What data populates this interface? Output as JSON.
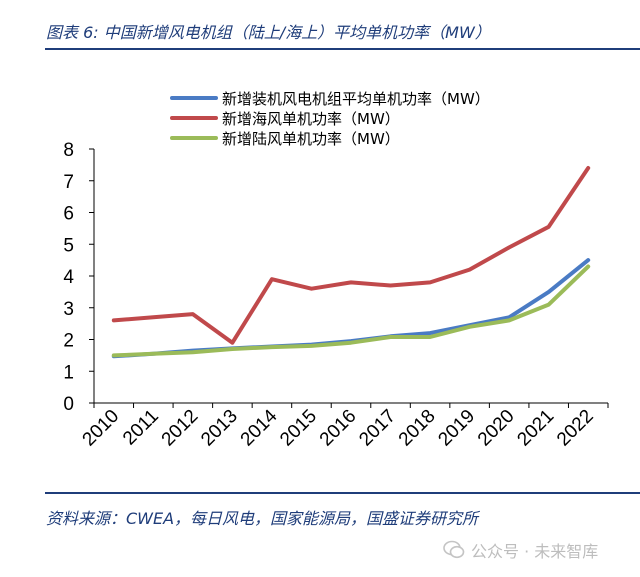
{
  "figure": {
    "title": "图表 6:  中国新增风电机组（陆上/海上）平均单机功率（MW）",
    "source": "资料来源：CWEA，每日风电，国家能源局，国盛证券研究所",
    "watermark": "公众号 · 未来智库"
  },
  "chart_data": {
    "type": "line",
    "title": "中国新增风电机组（陆上/海上）平均单机功率（MW）",
    "xlabel": "",
    "ylabel": "",
    "categories": [
      "2010",
      "2011",
      "2012",
      "2013",
      "2014",
      "2015",
      "2016",
      "2017",
      "2018",
      "2019",
      "2020",
      "2021",
      "2022"
    ],
    "ylim": [
      0,
      8
    ],
    "yticks": [
      "0",
      "1",
      "2",
      "3",
      "4",
      "5",
      "6",
      "7",
      "8"
    ],
    "legend_position": "top-center",
    "grid": false,
    "series": [
      {
        "name": "新增装机风电机组平均单机功率（MW）",
        "color": "#4a7bc4",
        "values": [
          1.47,
          1.55,
          1.65,
          1.72,
          1.78,
          1.84,
          1.95,
          2.1,
          2.2,
          2.45,
          2.7,
          3.5,
          4.5
        ]
      },
      {
        "name": "新增海风单机功率（MW）",
        "color": "#c0494b",
        "values": [
          2.6,
          2.7,
          2.8,
          1.9,
          3.9,
          3.6,
          3.8,
          3.7,
          3.8,
          4.2,
          4.9,
          5.55,
          7.4
        ]
      },
      {
        "name": "新增陆风单机功率（MW）",
        "color": "#9bbb59",
        "values": [
          1.5,
          1.55,
          1.6,
          1.7,
          1.76,
          1.8,
          1.9,
          2.08,
          2.08,
          2.4,
          2.6,
          3.1,
          4.3
        ]
      }
    ]
  }
}
